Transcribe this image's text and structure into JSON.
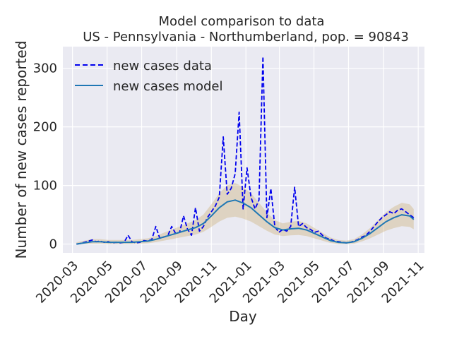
{
  "chart_data": {
    "type": "line",
    "title_line1": "Model comparison to data",
    "title_line2": "US - Pennsylvania - Northumberland, pop. = 90843",
    "xlabel": "Day",
    "ylabel": "Number of new cases reported",
    "xlim": [
      "2020-02-13",
      "2021-11-12"
    ],
    "ylim": [
      -15,
      337
    ],
    "y_ticks": [
      0,
      100,
      200,
      300
    ],
    "x_ticks": [
      "2020-03",
      "2020-05",
      "2020-07",
      "2020-09",
      "2020-11",
      "2021-01",
      "2021-03",
      "2021-05",
      "2021-07",
      "2021-09",
      "2021-11"
    ],
    "x_tick_dates": [
      "2020-03-01",
      "2020-05-01",
      "2020-07-01",
      "2020-09-01",
      "2020-11-01",
      "2021-01-01",
      "2021-03-01",
      "2021-05-01",
      "2021-07-01",
      "2021-09-01",
      "2021-11-01"
    ],
    "legend": {
      "position": "top-left",
      "entries": [
        "new cases data",
        "new cases model"
      ]
    },
    "series": [
      {
        "name": "new cases data",
        "style": "dashed",
        "color": "#0000ee",
        "points": [
          [
            "2020-03-08",
            0
          ],
          [
            "2020-03-15",
            1
          ],
          [
            "2020-03-22",
            3
          ],
          [
            "2020-03-29",
            5
          ],
          [
            "2020-04-05",
            7
          ],
          [
            "2020-04-12",
            4
          ],
          [
            "2020-04-19",
            5
          ],
          [
            "2020-04-26",
            3
          ],
          [
            "2020-05-03",
            4
          ],
          [
            "2020-05-10",
            2
          ],
          [
            "2020-05-17",
            3
          ],
          [
            "2020-05-24",
            2
          ],
          [
            "2020-05-31",
            3
          ],
          [
            "2020-06-07",
            15
          ],
          [
            "2020-06-14",
            4
          ],
          [
            "2020-06-21",
            2
          ],
          [
            "2020-06-28",
            3
          ],
          [
            "2020-07-05",
            6
          ],
          [
            "2020-07-12",
            5
          ],
          [
            "2020-07-19",
            8
          ],
          [
            "2020-07-26",
            30
          ],
          [
            "2020-08-02",
            10
          ],
          [
            "2020-08-09",
            12
          ],
          [
            "2020-08-16",
            14
          ],
          [
            "2020-08-23",
            30
          ],
          [
            "2020-08-30",
            18
          ],
          [
            "2020-09-06",
            20
          ],
          [
            "2020-09-13",
            48
          ],
          [
            "2020-09-20",
            25
          ],
          [
            "2020-09-27",
            15
          ],
          [
            "2020-10-04",
            62
          ],
          [
            "2020-10-11",
            22
          ],
          [
            "2020-10-18",
            30
          ],
          [
            "2020-10-25",
            45
          ],
          [
            "2020-11-01",
            55
          ],
          [
            "2020-11-08",
            65
          ],
          [
            "2020-11-15",
            80
          ],
          [
            "2020-11-22",
            183
          ],
          [
            "2020-11-29",
            85
          ],
          [
            "2020-12-06",
            95
          ],
          [
            "2020-12-13",
            120
          ],
          [
            "2020-12-20",
            225
          ],
          [
            "2020-12-27",
            60
          ],
          [
            "2021-01-03",
            130
          ],
          [
            "2021-01-10",
            80
          ],
          [
            "2021-01-17",
            60
          ],
          [
            "2021-01-24",
            75
          ],
          [
            "2021-01-31",
            320
          ],
          [
            "2021-02-07",
            45
          ],
          [
            "2021-02-14",
            95
          ],
          [
            "2021-02-21",
            30
          ],
          [
            "2021-02-28",
            20
          ],
          [
            "2021-03-07",
            25
          ],
          [
            "2021-03-14",
            22
          ],
          [
            "2021-03-21",
            30
          ],
          [
            "2021-03-28",
            97
          ],
          [
            "2021-04-04",
            30
          ],
          [
            "2021-04-11",
            35
          ],
          [
            "2021-04-18",
            28
          ],
          [
            "2021-04-25",
            25
          ],
          [
            "2021-05-02",
            20
          ],
          [
            "2021-05-09",
            22
          ],
          [
            "2021-05-16",
            15
          ],
          [
            "2021-05-23",
            10
          ],
          [
            "2021-05-30",
            8
          ],
          [
            "2021-06-06",
            5
          ],
          [
            "2021-06-13",
            4
          ],
          [
            "2021-06-20",
            3
          ],
          [
            "2021-06-27",
            2
          ],
          [
            "2021-07-04",
            3
          ],
          [
            "2021-07-11",
            5
          ],
          [
            "2021-07-18",
            8
          ],
          [
            "2021-07-25",
            12
          ],
          [
            "2021-08-01",
            15
          ],
          [
            "2021-08-08",
            22
          ],
          [
            "2021-08-15",
            30
          ],
          [
            "2021-08-22",
            38
          ],
          [
            "2021-08-29",
            45
          ],
          [
            "2021-09-05",
            50
          ],
          [
            "2021-09-12",
            55
          ],
          [
            "2021-09-19",
            52
          ],
          [
            "2021-09-26",
            58
          ],
          [
            "2021-10-03",
            60
          ],
          [
            "2021-10-10",
            55
          ],
          [
            "2021-10-17",
            50
          ],
          [
            "2021-10-24",
            45
          ]
        ]
      },
      {
        "name": "new cases model",
        "style": "solid",
        "color": "#1f77b4",
        "points": [
          [
            "2020-03-08",
            0
          ],
          [
            "2020-03-22",
            2
          ],
          [
            "2020-04-05",
            4
          ],
          [
            "2020-04-19",
            4
          ],
          [
            "2020-05-03",
            3
          ],
          [
            "2020-05-17",
            3
          ],
          [
            "2020-05-31",
            3
          ],
          [
            "2020-06-14",
            3
          ],
          [
            "2020-06-28",
            4
          ],
          [
            "2020-07-12",
            5
          ],
          [
            "2020-07-26",
            8
          ],
          [
            "2020-08-09",
            12
          ],
          [
            "2020-08-23",
            16
          ],
          [
            "2020-09-06",
            20
          ],
          [
            "2020-09-20",
            24
          ],
          [
            "2020-10-04",
            28
          ],
          [
            "2020-10-18",
            35
          ],
          [
            "2020-11-01",
            48
          ],
          [
            "2020-11-15",
            62
          ],
          [
            "2020-11-29",
            72
          ],
          [
            "2020-12-13",
            75
          ],
          [
            "2020-12-27",
            70
          ],
          [
            "2021-01-10",
            62
          ],
          [
            "2021-01-24",
            50
          ],
          [
            "2021-02-07",
            38
          ],
          [
            "2021-02-21",
            28
          ],
          [
            "2021-03-07",
            24
          ],
          [
            "2021-03-21",
            26
          ],
          [
            "2021-04-04",
            27
          ],
          [
            "2021-04-18",
            24
          ],
          [
            "2021-05-02",
            18
          ],
          [
            "2021-05-16",
            12
          ],
          [
            "2021-05-30",
            6
          ],
          [
            "2021-06-13",
            3
          ],
          [
            "2021-06-27",
            2
          ],
          [
            "2021-07-11",
            4
          ],
          [
            "2021-07-25",
            10
          ],
          [
            "2021-08-08",
            18
          ],
          [
            "2021-08-22",
            28
          ],
          [
            "2021-09-05",
            38
          ],
          [
            "2021-09-19",
            45
          ],
          [
            "2021-10-03",
            50
          ],
          [
            "2021-10-17",
            48
          ],
          [
            "2021-10-24",
            42
          ]
        ]
      }
    ]
  }
}
